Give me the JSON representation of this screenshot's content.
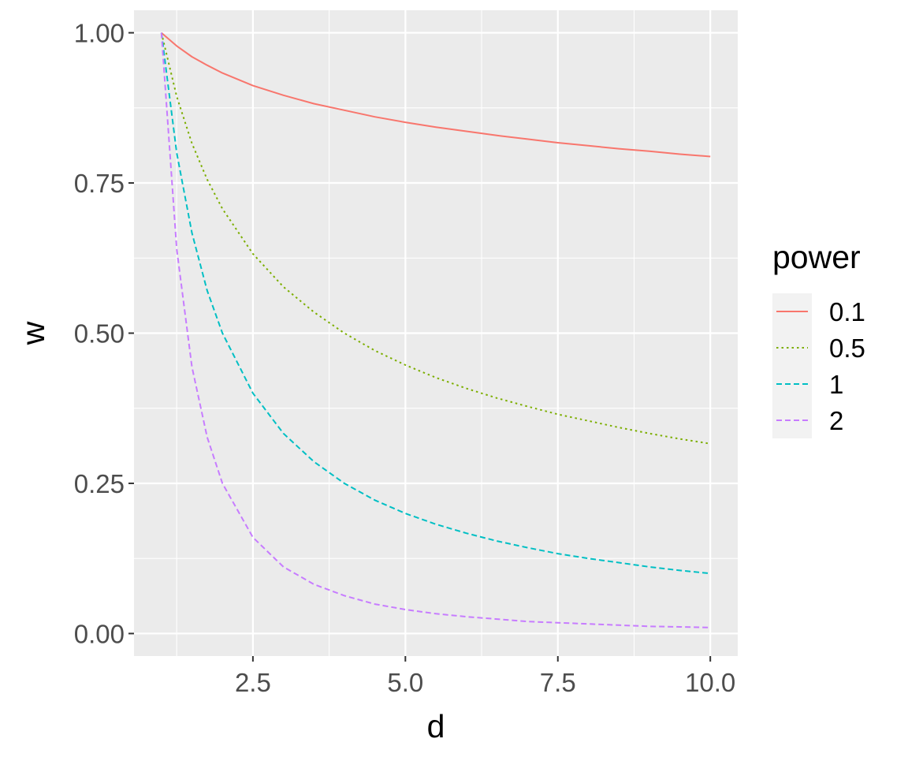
{
  "chart_data": {
    "type": "line",
    "title": "",
    "xlabel": "d",
    "ylabel": "w",
    "xlim": [
      0.55,
      10.45
    ],
    "ylim": [
      -0.0375,
      1.0375
    ],
    "x_ticks": [
      2.5,
      5.0,
      7.5,
      10.0
    ],
    "x_tick_labels": [
      "2.5",
      "5.0",
      "7.5",
      "10.0"
    ],
    "y_ticks": [
      0.0,
      0.25,
      0.5,
      0.75,
      1.0
    ],
    "y_tick_labels": [
      "0.00",
      "0.25",
      "0.50",
      "0.75",
      "1.00"
    ],
    "grid": true,
    "panel_background": "#ebebeb",
    "legend": {
      "title": "power",
      "placement": "right"
    },
    "x": [
      1,
      1.25,
      1.5,
      1.75,
      2,
      2.5,
      3,
      3.5,
      4,
      4.5,
      5,
      5.5,
      6,
      6.5,
      7,
      7.5,
      8,
      8.5,
      9,
      9.5,
      10
    ],
    "series": [
      {
        "name": "0.1",
        "color": "#f8766d",
        "dash": "solid",
        "values": [
          1.0,
          0.978,
          0.96,
          0.946,
          0.933,
          0.912,
          0.896,
          0.882,
          0.871,
          0.86,
          0.851,
          0.843,
          0.836,
          0.829,
          0.823,
          0.817,
          0.812,
          0.807,
          0.803,
          0.798,
          0.794
        ]
      },
      {
        "name": "0.5",
        "color": "#7cae00",
        "dash": "dotted",
        "values": [
          1.0,
          0.894,
          0.816,
          0.756,
          0.707,
          0.632,
          0.577,
          0.535,
          0.5,
          0.471,
          0.447,
          0.426,
          0.408,
          0.392,
          0.378,
          0.365,
          0.354,
          0.343,
          0.333,
          0.324,
          0.316
        ]
      },
      {
        "name": "1",
        "color": "#00bfc4",
        "dash": "dashed",
        "values": [
          1.0,
          0.8,
          0.667,
          0.571,
          0.5,
          0.4,
          0.333,
          0.286,
          0.25,
          0.222,
          0.2,
          0.182,
          0.167,
          0.154,
          0.143,
          0.133,
          0.125,
          0.118,
          0.111,
          0.105,
          0.1
        ]
      },
      {
        "name": "2",
        "color": "#c77cff",
        "dash": "dashed",
        "values": [
          1.0,
          0.64,
          0.444,
          0.327,
          0.25,
          0.16,
          0.111,
          0.082,
          0.063,
          0.049,
          0.04,
          0.033,
          0.028,
          0.024,
          0.02,
          0.018,
          0.016,
          0.014,
          0.012,
          0.011,
          0.01
        ]
      }
    ]
  }
}
